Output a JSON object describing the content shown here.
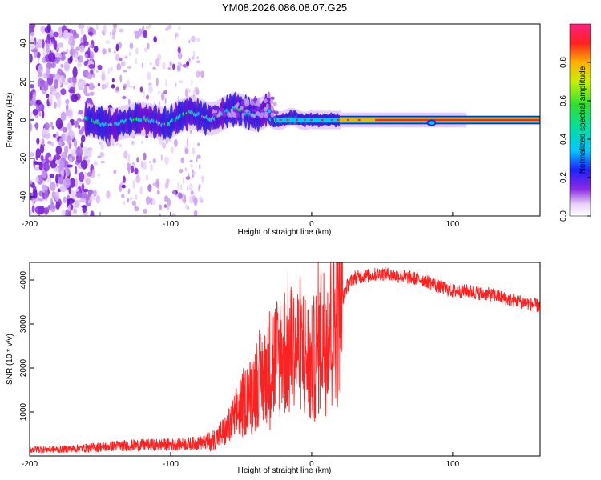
{
  "title": "YM08.2026.086.08.07.G25",
  "colors": {
    "snr_line": "#ff2020",
    "axis": "#000000",
    "background": "#ffffff"
  },
  "chart_data": [
    {
      "type": "heatmap",
      "name": "spectrogram",
      "xlabel": "Height of straight line (km)",
      "ylabel": "Frequency (Hz)",
      "xlim": [
        -200,
        162
      ],
      "ylim": [
        -50,
        50
      ],
      "x_ticks": [
        -200,
        -100,
        0,
        100
      ],
      "y_ticks": [
        -40,
        -20,
        0,
        20,
        40
      ],
      "colorbar": {
        "label": "Normalized spectral amplitude",
        "range": [
          0,
          1
        ],
        "ticks": [
          0.0,
          0.2,
          0.4,
          0.6,
          0.8
        ],
        "tick_labels": [
          "0.0",
          "0.2",
          "0.4",
          "0.6",
          "0.8"
        ]
      },
      "features": {
        "noise_region_km": [
          -200,
          -155
        ],
        "scatter_region_km": [
          -155,
          -80
        ],
        "signal_line_freq_hz": 0,
        "strong_signal_from_km": 20
      }
    },
    {
      "type": "line",
      "name": "snr",
      "xlabel": "Height of straight line (km)",
      "ylabel": "SNR (10 * v/v)",
      "xlim": [
        -200,
        162
      ],
      "ylim": [
        0,
        4400
      ],
      "x_ticks": [
        -200,
        -100,
        0,
        100
      ],
      "y_ticks": [
        1000,
        2000,
        3000,
        4000
      ],
      "series": [
        {
          "name": "SNR",
          "x": [
            -200,
            -180,
            -160,
            -140,
            -120,
            -100,
            -80,
            -70,
            -60,
            -50,
            -40,
            -30,
            -20,
            -10,
            -5,
            0,
            5,
            10,
            15,
            20,
            25,
            30,
            40,
            50,
            60,
            70,
            80,
            90,
            100,
            110,
            120,
            130,
            140,
            150,
            162
          ],
          "values": [
            150,
            150,
            180,
            230,
            250,
            260,
            290,
            350,
            600,
            1100,
            1600,
            2000,
            2400,
            2500,
            2300,
            2000,
            2600,
            2900,
            3100,
            3400,
            3850,
            4050,
            4100,
            4150,
            4100,
            4050,
            4000,
            3850,
            3750,
            3750,
            3700,
            3650,
            3550,
            3500,
            3400
          ]
        }
      ]
    }
  ]
}
